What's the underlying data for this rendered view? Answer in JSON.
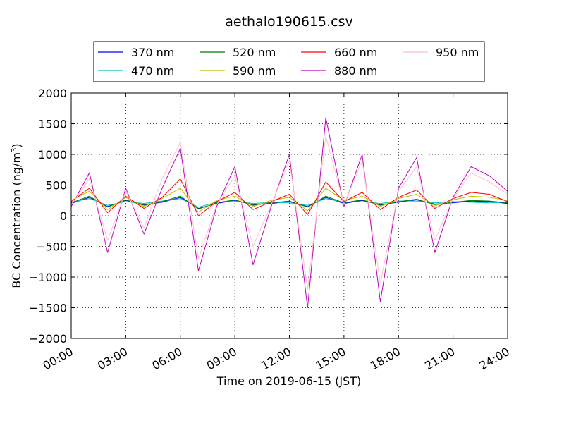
{
  "chart_data": {
    "type": "line",
    "title": "aethalo190615.csv",
    "xlabel": "Time on 2019-06-15 (JST)",
    "ylabel_main": "BC Concentration (ng/m",
    "ylabel_sup": "3",
    "ylabel_end": ")",
    "xlim": [
      "00:00",
      "24:00"
    ],
    "ylim": [
      -2000,
      2000
    ],
    "grid": true,
    "legend_position": "top",
    "x_ticks": [
      {
        "label": "00:00",
        "hour": 0
      },
      {
        "label": "03:00",
        "hour": 3
      },
      {
        "label": "06:00",
        "hour": 6
      },
      {
        "label": "09:00",
        "hour": 9
      },
      {
        "label": "12:00",
        "hour": 12
      },
      {
        "label": "15:00",
        "hour": 15
      },
      {
        "label": "18:00",
        "hour": 18
      },
      {
        "label": "21:00",
        "hour": 21
      },
      {
        "label": "24:00",
        "hour": 24
      }
    ],
    "y_ticks": [
      {
        "label": "2000",
        "value": 2000
      },
      {
        "label": "1500",
        "value": 1500
      },
      {
        "label": "1000",
        "value": 1000
      },
      {
        "label": "500",
        "value": 500
      },
      {
        "label": "0",
        "value": 0
      },
      {
        "label": "−500",
        "value": -500
      },
      {
        "label": "−1000",
        "value": -1000
      },
      {
        "label": "−1500",
        "value": -1500
      },
      {
        "label": "−2000",
        "value": -2000
      }
    ],
    "series": [
      {
        "name": "370 nm",
        "color": "#0000ff",
        "values": [
          200,
          300,
          150,
          250,
          180,
          220,
          300,
          120,
          200,
          250,
          180,
          200,
          230,
          150,
          300,
          200,
          250,
          180,
          220,
          260,
          190,
          210,
          240,
          230,
          200
        ]
      },
      {
        "name": "470 nm",
        "color": "#00bfbf",
        "values": [
          220,
          280,
          170,
          230,
          200,
          240,
          280,
          140,
          220,
          240,
          200,
          220,
          210,
          170,
          280,
          220,
          230,
          200,
          240,
          240,
          210,
          230,
          220,
          210,
          220
        ]
      },
      {
        "name": "520 nm",
        "color": "#008000",
        "values": [
          210,
          320,
          140,
          260,
          170,
          230,
          320,
          110,
          210,
          260,
          170,
          210,
          240,
          140,
          320,
          210,
          260,
          170,
          230,
          270,
          180,
          220,
          250,
          240,
          210
        ]
      },
      {
        "name": "590 nm",
        "color": "#bfbf00",
        "values": [
          250,
          400,
          100,
          300,
          150,
          280,
          450,
          60,
          250,
          320,
          150,
          250,
          300,
          80,
          450,
          250,
          320,
          150,
          280,
          350,
          160,
          260,
          320,
          300,
          250
        ]
      },
      {
        "name": "660 nm",
        "color": "#ff0000",
        "values": [
          230,
          450,
          50,
          320,
          120,
          300,
          600,
          0,
          230,
          380,
          100,
          230,
          350,
          20,
          550,
          230,
          380,
          100,
          300,
          420,
          120,
          280,
          380,
          350,
          230
        ]
      },
      {
        "name": "880 nm",
        "color": "#bf00bf",
        "values": [
          150,
          700,
          -600,
          450,
          -300,
          450,
          1100,
          -900,
          150,
          800,
          -800,
          150,
          1000,
          -1500,
          1600,
          150,
          1000,
          -1400,
          450,
          950,
          -600,
          300,
          800,
          650,
          400
        ]
      },
      {
        "name": "950 nm",
        "color": "#ffc0cb",
        "values": [
          180,
          600,
          -400,
          400,
          -200,
          600,
          1200,
          -700,
          180,
          650,
          -500,
          180,
          900,
          -1200,
          1300,
          180,
          900,
          -1100,
          400,
          800,
          -400,
          280,
          700,
          550,
          350
        ]
      }
    ]
  }
}
